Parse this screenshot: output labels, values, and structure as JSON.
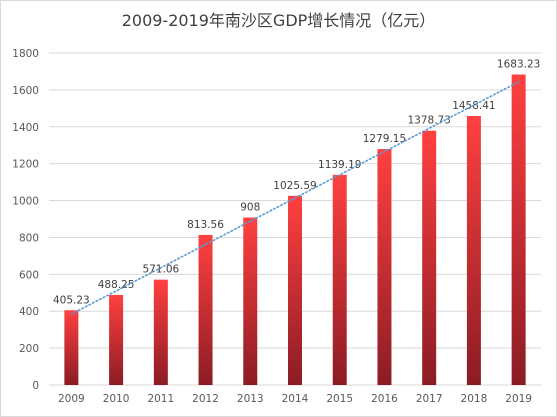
{
  "chart_data": {
    "type": "bar",
    "title": "2009-2019年南沙区GDP增长情况（亿元）",
    "categories": [
      "2009",
      "2010",
      "2011",
      "2012",
      "2013",
      "2014",
      "2015",
      "2016",
      "2017",
      "2018",
      "2019"
    ],
    "values": [
      405.23,
      488.25,
      571.06,
      813.56,
      908,
      1025.59,
      1139.19,
      1279.15,
      1378.73,
      1458.41,
      1683.23
    ],
    "value_labels": [
      "405.23",
      "488.25",
      "571.06",
      "813.56",
      "908",
      "1025.59",
      "1139.19",
      "1279.15",
      "1378.73",
      "1458.41",
      "1683.23"
    ],
    "ylim": [
      0,
      1800
    ],
    "yticks": [
      "0",
      "200",
      "400",
      "600",
      "800",
      "1000",
      "1200",
      "1400",
      "1600",
      "1800"
    ],
    "grid": true,
    "trendline": "linear",
    "colors": {
      "bar_top": "#ff4040",
      "bar_bottom": "#8b1c24",
      "trendline": "#5b9bd5",
      "grid": "#d9d9d9"
    }
  }
}
